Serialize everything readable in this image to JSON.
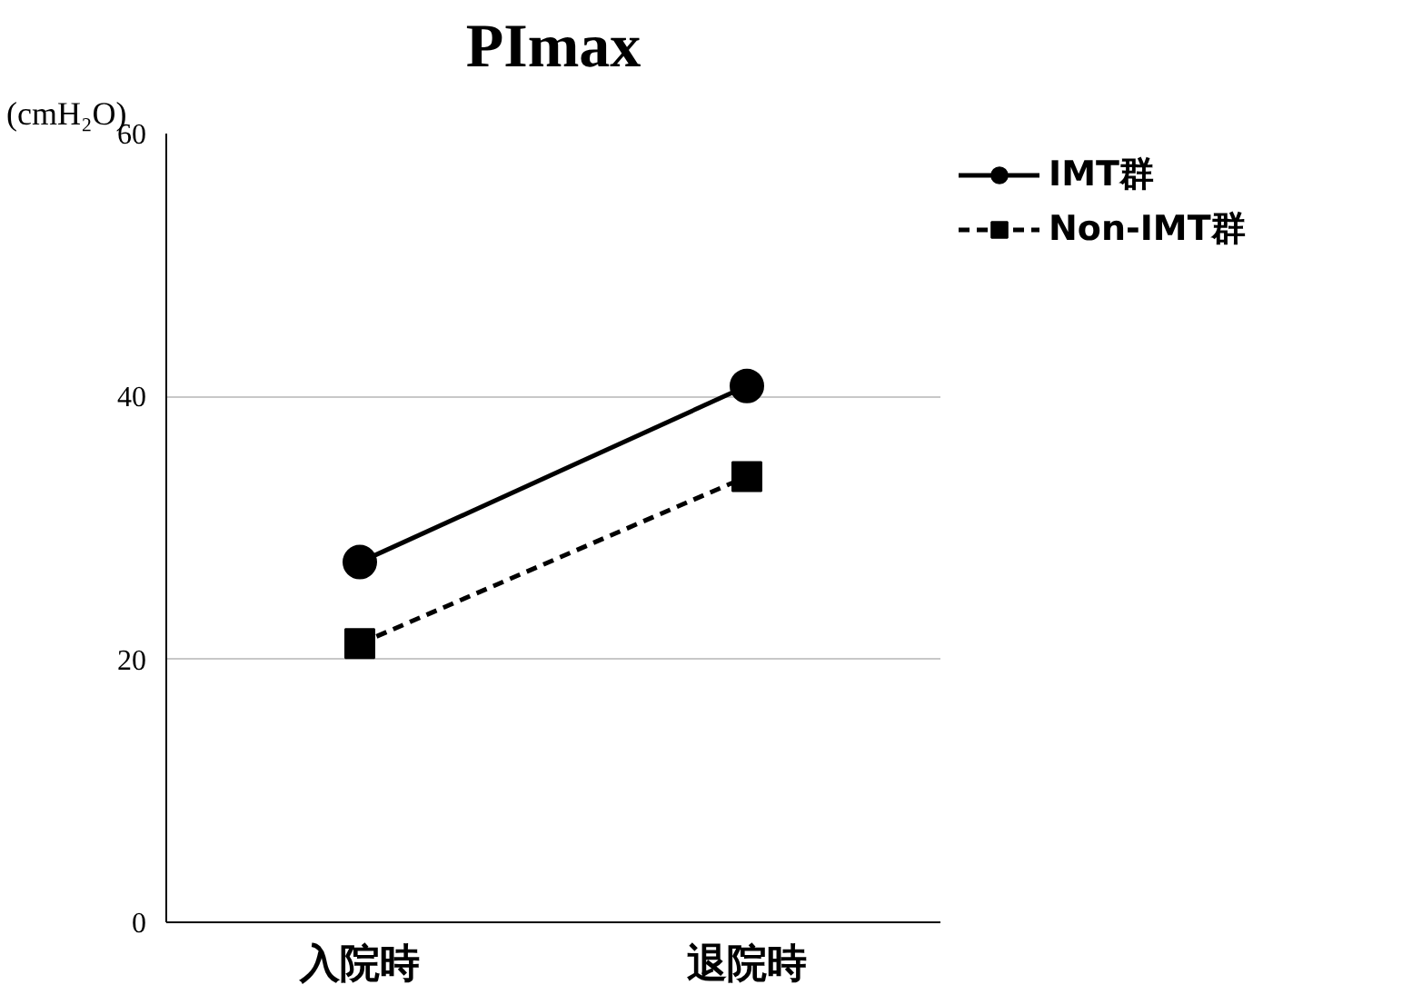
{
  "chart_data": {
    "type": "line",
    "title": "PImax",
    "ylabel": "(cmH₂O)",
    "categories": [
      "入院時",
      "退院時"
    ],
    "series": [
      {
        "name": "IMT群",
        "color": "#000000",
        "values": [
          27.4,
          40.8
        ],
        "marker": "circle",
        "line_style": "solid"
      },
      {
        "name": "Non-IMT群",
        "color": "#000000",
        "values": [
          21.2,
          33.9
        ],
        "marker": "square",
        "line_style": "dashed"
      }
    ],
    "ylim": [
      0,
      60
    ],
    "yticks": [
      0,
      20,
      40,
      60
    ],
    "grid": "y",
    "legend": "top right"
  }
}
